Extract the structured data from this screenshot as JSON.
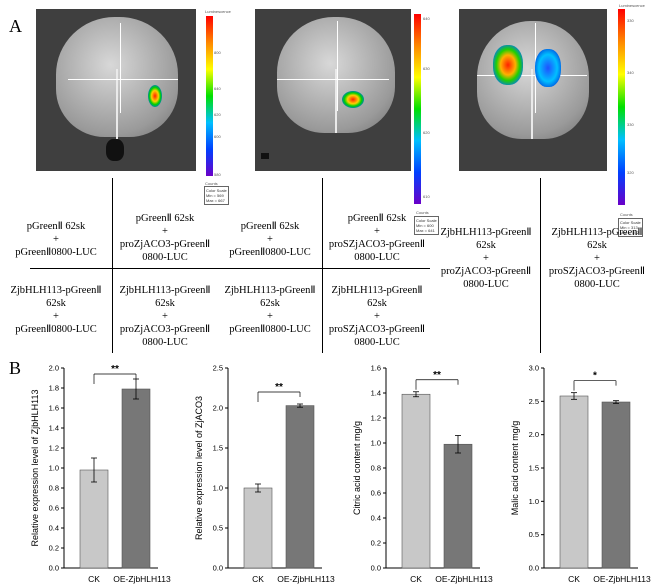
{
  "figure": {
    "panel_a_label": "A",
    "panel_b_label": "B"
  },
  "panel_a": {
    "scales": [
      {
        "title": "Luminescence",
        "ticks": [
          "800",
          "640",
          "620",
          "600",
          "580"
        ],
        "counts_label": "Counts",
        "box": "Color Scale\nMin = 569\nMax = 667"
      },
      {
        "title": "Luminescence",
        "ticks": [
          "640",
          "630",
          "620",
          "610"
        ],
        "counts_label": "Counts",
        "box": "Color Scale\nMin = 600\nMax = 641"
      },
      {
        "title": "Luminescence",
        "ticks": [
          "330",
          "340",
          "330",
          "320"
        ],
        "counts_label": "Counts",
        "box": "Color Scale\nMin = 313\nMax = 552"
      }
    ],
    "cells": [
      [
        "pGreenⅡ 62sk",
        "+",
        "pGreenⅡ0800-LUC"
      ],
      [
        "pGreenⅡ 62sk",
        "+",
        "proZjACO3-pGreenⅡ",
        "0800-LUC"
      ],
      [
        "pGreenⅡ 62sk",
        "+",
        "pGreenⅡ0800-LUC"
      ],
      [
        "pGreenⅡ 62sk",
        "+",
        "proSZjACO3-pGreenⅡ",
        "0800-LUC"
      ],
      [
        "ZjbHLH113-pGreenⅡ",
        "62sk",
        "+",
        "proZjACO3-pGreenⅡ",
        "0800-LUC"
      ],
      [
        "ZjbHLH113-pGreenⅡ",
        "62sk",
        "+",
        "proSZjACO3-pGreenⅡ",
        "0800-LUC"
      ],
      [
        "ZjbHLH113-pGreenⅡ",
        "62sk",
        "+",
        "pGreenⅡ0800-LUC"
      ],
      [
        "ZjbHLH113-pGreenⅡ",
        "62sk",
        "+",
        "proZjACO3-pGreenⅡ",
        "0800-LUC"
      ],
      [
        "ZjbHLH113-pGreenⅡ",
        "62sk",
        "+",
        "pGreenⅡ0800-LUC"
      ],
      [
        "ZjbHLH113-pGreenⅡ",
        "62sk",
        "+",
        "proSZjACO3-pGreenⅡ",
        "0800-LUC"
      ]
    ]
  },
  "chart_data": [
    {
      "type": "bar",
      "categories": [
        "CK",
        "OE-ZjbHLH113"
      ],
      "values": [
        0.98,
        1.79
      ],
      "errors": [
        0.12,
        0.1
      ],
      "ylabel": "Relative expression level of ZjbHLH113",
      "ylim": [
        0,
        2.0
      ],
      "yticks": [
        "0.0",
        "0.2",
        "0.4",
        "0.6",
        "0.8",
        "1.0",
        "1.2",
        "1.4",
        "1.6",
        "1.8",
        "2.0"
      ],
      "significance": "**"
    },
    {
      "type": "bar",
      "categories": [
        "CK",
        "OE-ZjbHLH113"
      ],
      "values": [
        1.0,
        2.03
      ],
      "errors": [
        0.05,
        0.02
      ],
      "ylabel": "Relative expression level of ZjACO3",
      "ylim": [
        0,
        2.5
      ],
      "yticks": [
        "0.0",
        "0.5",
        "1.0",
        "1.5",
        "2.0",
        "2.5"
      ],
      "significance": "**"
    },
    {
      "type": "bar",
      "categories": [
        "CK",
        "OE-ZjbHLH113"
      ],
      "values": [
        1.39,
        0.99
      ],
      "errors": [
        0.02,
        0.07
      ],
      "ylabel": "Citric acid content mg/g",
      "ylim": [
        0,
        1.6
      ],
      "yticks": [
        "0.0",
        "0.2",
        "0.4",
        "0.6",
        "0.8",
        "1.0",
        "1.2",
        "1.4",
        "1.6"
      ],
      "significance": "**"
    },
    {
      "type": "bar",
      "categories": [
        "CK",
        "OE-ZjbHLH113"
      ],
      "values": [
        2.58,
        2.49
      ],
      "errors": [
        0.05,
        0.02
      ],
      "ylabel": "Malic acid content mg/g",
      "ylim": [
        0,
        3.0
      ],
      "yticks": [
        "0.0",
        "0.5",
        "1.0",
        "1.5",
        "2.0",
        "2.5",
        "3.0"
      ],
      "significance": "*"
    }
  ],
  "colors": {
    "ck_bar": "#c8c8c8",
    "oe_bar": "#777777"
  }
}
